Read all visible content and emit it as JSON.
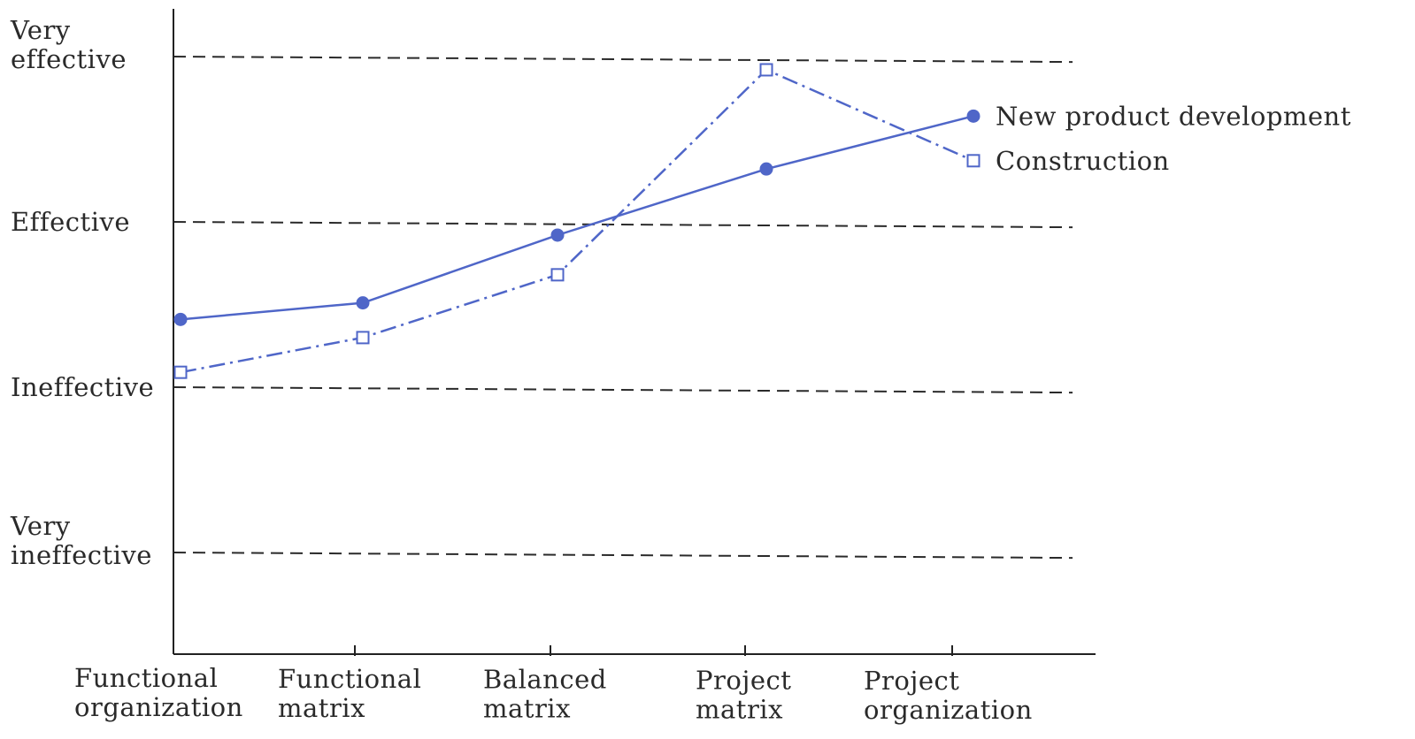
{
  "chart_data": {
    "type": "line",
    "categories": [
      [
        "Functional",
        "organization"
      ],
      [
        "Functional",
        "matrix"
      ],
      [
        "Balanced",
        "matrix"
      ],
      [
        "Project",
        "matrix"
      ],
      [
        "Project",
        "organization"
      ]
    ],
    "y_levels": [
      {
        "value": 0,
        "label": [
          "Very",
          "ineffective"
        ]
      },
      {
        "value": 1,
        "label": [
          "Ineffective"
        ]
      },
      {
        "value": 2,
        "label": [
          "Effective"
        ]
      },
      {
        "value": 3,
        "label": [
          "Very",
          "effective"
        ]
      }
    ],
    "ylim": [
      -0.62,
      3.05
    ],
    "grid": true,
    "legend_position": "right",
    "series": [
      {
        "name": "New product development",
        "marker": "filled-circle",
        "line_style": "solid",
        "color": "#4f66c8",
        "values": [
          1.41,
          1.51,
          1.92,
          2.32,
          2.64
        ]
      },
      {
        "name": "Construction",
        "marker": "open-square",
        "line_style": "dash-dot",
        "color": "#4f66c8",
        "values": [
          1.09,
          1.3,
          1.68,
          2.92,
          2.37
        ]
      }
    ]
  }
}
